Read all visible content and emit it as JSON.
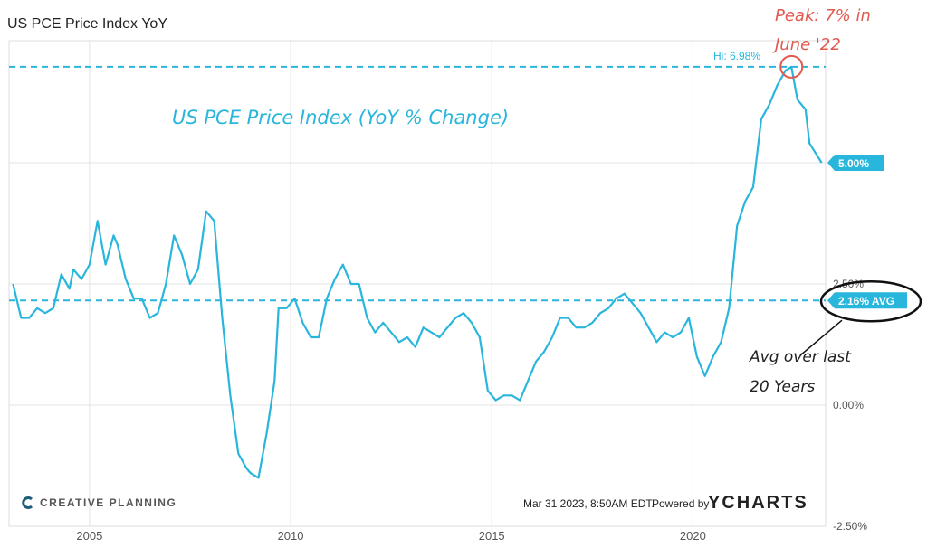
{
  "page_title": "US PCE Price Index YoY",
  "chart_data": {
    "type": "line",
    "title": "US PCE Price Index YoY",
    "subtitle": "US PCE Price Index (YoY % Change)",
    "ylim": [
      -2.5,
      7.5
    ],
    "y_ticks": [
      "5.00%",
      "2.50%",
      "0.00%",
      "-2.50%"
    ],
    "x_ticks": [
      "2005",
      "2010",
      "2015",
      "2020"
    ],
    "grid": true,
    "series": [
      {
        "color": "#29b6dc",
        "x": [
          2003.1,
          2003.3,
          2003.5,
          2003.7,
          2003.9,
          2004.1,
          2004.3,
          2004.5,
          2004.6,
          2004.8,
          2005.0,
          2005.2,
          2005.4,
          2005.6,
          2005.7,
          2005.9,
          2006.1,
          2006.3,
          2006.5,
          2006.7,
          2006.9,
          2007.1,
          2007.3,
          2007.5,
          2007.7,
          2007.9,
          2008.1,
          2008.3,
          2008.5,
          2008.7,
          2008.9,
          2009.0,
          2009.2,
          2009.4,
          2009.6,
          2009.7,
          2009.9,
          2010.1,
          2010.3,
          2010.5,
          2010.7,
          2010.9,
          2011.1,
          2011.3,
          2011.5,
          2011.7,
          2011.9,
          2012.1,
          2012.3,
          2012.5,
          2012.7,
          2012.9,
          2013.1,
          2013.3,
          2013.5,
          2013.7,
          2013.9,
          2014.1,
          2014.3,
          2014.5,
          2014.7,
          2014.9,
          2015.1,
          2015.3,
          2015.5,
          2015.7,
          2015.9,
          2016.1,
          2016.3,
          2016.5,
          2016.7,
          2016.9,
          2017.1,
          2017.3,
          2017.5,
          2017.7,
          2017.9,
          2018.1,
          2018.3,
          2018.5,
          2018.7,
          2018.9,
          2019.1,
          2019.3,
          2019.5,
          2019.7,
          2019.9,
          2020.1,
          2020.3,
          2020.5,
          2020.7,
          2020.9,
          2021.1,
          2021.3,
          2021.5,
          2021.7,
          2021.9,
          2022.1,
          2022.3,
          2022.45,
          2022.6,
          2022.8,
          2022.9,
          2023.05,
          2023.2
        ],
        "y": [
          2.5,
          1.8,
          1.8,
          2.0,
          1.9,
          2.0,
          2.7,
          2.4,
          2.8,
          2.6,
          2.9,
          3.8,
          2.9,
          3.5,
          3.3,
          2.6,
          2.2,
          2.2,
          1.8,
          1.9,
          2.5,
          3.5,
          3.1,
          2.5,
          2.8,
          4.0,
          3.8,
          1.8,
          0.2,
          -1.0,
          -1.3,
          -1.4,
          -1.5,
          -0.6,
          0.5,
          2.0,
          2.0,
          2.2,
          1.7,
          1.4,
          1.4,
          2.2,
          2.6,
          2.9,
          2.5,
          2.5,
          1.8,
          1.5,
          1.7,
          1.5,
          1.3,
          1.4,
          1.2,
          1.6,
          1.5,
          1.4,
          1.6,
          1.8,
          1.9,
          1.7,
          1.4,
          0.3,
          0.1,
          0.2,
          0.2,
          0.1,
          0.5,
          0.9,
          1.1,
          1.4,
          1.8,
          1.8,
          1.6,
          1.6,
          1.7,
          1.9,
          2.0,
          2.2,
          2.3,
          2.1,
          1.9,
          1.6,
          1.3,
          1.5,
          1.4,
          1.5,
          1.8,
          1.0,
          0.6,
          1.0,
          1.3,
          2.0,
          3.7,
          4.2,
          4.5,
          5.9,
          6.2,
          6.6,
          6.9,
          6.98,
          6.3,
          6.1,
          5.4,
          5.2,
          5.0
        ]
      }
    ],
    "annotations": {
      "high_label": "Hi: 6.98%",
      "high_value": 6.98,
      "last_value": 5.0,
      "last_label": "5.00%",
      "avg_value": 2.16,
      "avg_label": "2.16% AVG",
      "peak_note_1": "Peak: 7% in",
      "peak_note_2": "June '22",
      "avg_note_1": "Avg over last",
      "avg_note_2": "20 Years"
    },
    "colors": {
      "line": "#29b6dc",
      "peak_note": "#e05a4f",
      "grid": "#e0e0e0"
    }
  },
  "footer": {
    "brand": "CREATIVE PLANNING",
    "timestamp": "Mar 31 2023, 8:50AM EDT.",
    "powered_by": "Powered by",
    "provider": "YCHARTS"
  }
}
